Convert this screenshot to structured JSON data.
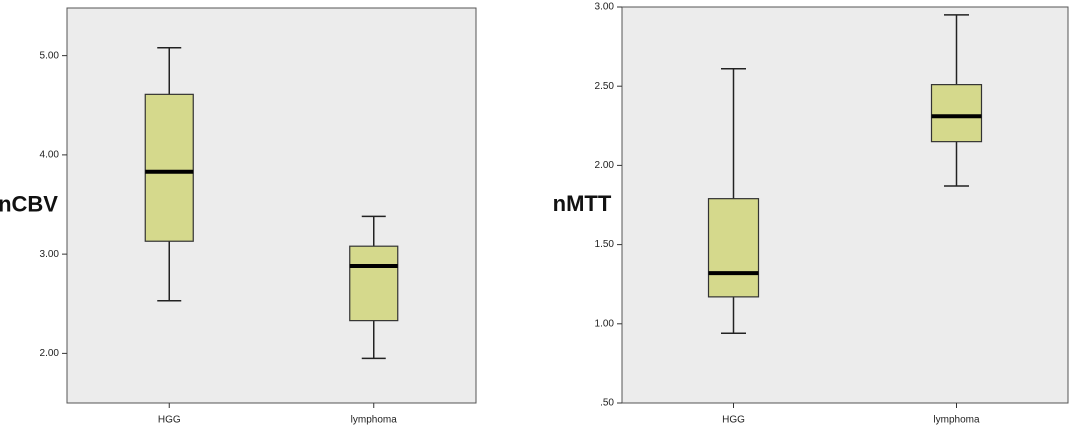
{
  "chart_data": [
    {
      "type": "box",
      "y_label": "nCBV",
      "categories": [
        "HGG",
        "lymphoma"
      ],
      "min": [
        2.53,
        1.95
      ],
      "q1": [
        3.13,
        2.33
      ],
      "median": [
        3.83,
        2.88
      ],
      "q3": [
        4.61,
        3.08
      ],
      "max": [
        5.08,
        3.38
      ],
      "color": "#d5d98c",
      "ylim": [
        1.5,
        5.48
      ],
      "yticks": [
        {
          "value": 2,
          "label": "2.00"
        },
        {
          "value": 3,
          "label": "3.00"
        },
        {
          "value": 4,
          "label": "4.00"
        },
        {
          "value": 5,
          "label": "5.00"
        }
      ]
    },
    {
      "type": "box",
      "y_label": "nMTT",
      "categories": [
        "HGG",
        "lymphoma"
      ],
      "min": [
        0.94,
        1.87
      ],
      "q1": [
        1.17,
        2.15
      ],
      "median": [
        1.32,
        2.31
      ],
      "q3": [
        1.79,
        2.51
      ],
      "max": [
        2.61,
        2.95
      ],
      "color": "#d5d98c",
      "ylim": [
        0.5,
        3.0
      ],
      "yticks": [
        {
          "value": 0.5,
          "label": ".50"
        },
        {
          "value": 1,
          "label": "1.00"
        },
        {
          "value": 1.5,
          "label": "1.50"
        },
        {
          "value": 2,
          "label": "2.00"
        },
        {
          "value": 2.5,
          "label": "2.50"
        },
        {
          "value": 3,
          "label": "3.00"
        }
      ]
    }
  ]
}
